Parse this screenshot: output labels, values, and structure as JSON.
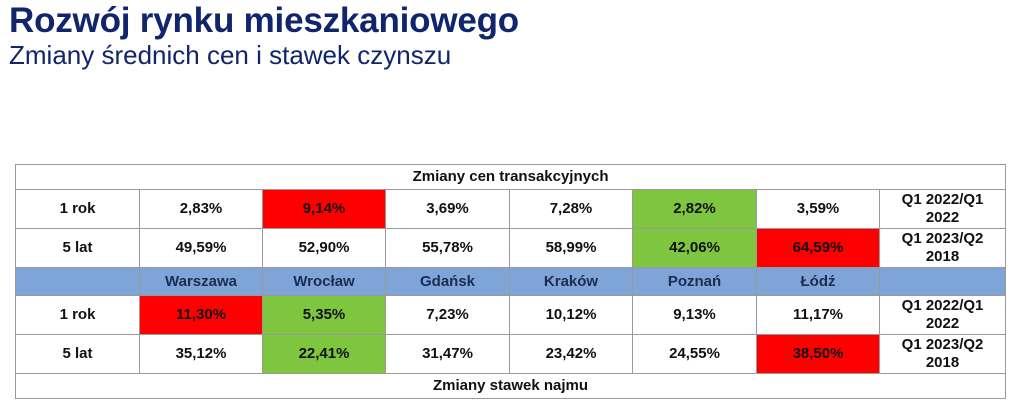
{
  "title": "Rozwój rynku mieszkaniowego",
  "subtitle": "Zmiany średnich cen i stawek czynszu",
  "colors": {
    "title": "#10256b",
    "high": "#fe0000",
    "low": "#7ec63f",
    "header": "#7ea4d8"
  },
  "table": {
    "section_prices": "Zmiany cen transakcyjnych",
    "section_rent": "Zmiany stawek najmu",
    "cities": [
      "Warszawa",
      "Wrocław",
      "Gdańsk",
      "Kraków",
      "Poznań",
      "Łódź"
    ],
    "prices": [
      {
        "label": "1 rok",
        "values": [
          "2,83%",
          "9,14%",
          "3,69%",
          "7,28%",
          "2,82%",
          "3,59%"
        ],
        "period": [
          "Q1 2022/Q1",
          "2022"
        ]
      },
      {
        "label": "5 lat",
        "values": [
          "49,59%",
          "52,90%",
          "55,78%",
          "58,99%",
          "42,06%",
          "64,59%"
        ],
        "period": [
          "Q1 2023/Q2",
          "2018"
        ]
      }
    ],
    "rent": [
      {
        "label": "1 rok",
        "values": [
          "11,30%",
          "5,35%",
          "7,23%",
          "10,12%",
          "9,13%",
          "11,17%"
        ],
        "period": [
          "Q1 2022/Q1",
          "2022"
        ]
      },
      {
        "label": "5 lat",
        "values": [
          "35,12%",
          "22,41%",
          "31,47%",
          "23,42%",
          "24,55%",
          "38,50%"
        ],
        "period": [
          "Q1 2023/Q2",
          "2018"
        ]
      }
    ]
  }
}
